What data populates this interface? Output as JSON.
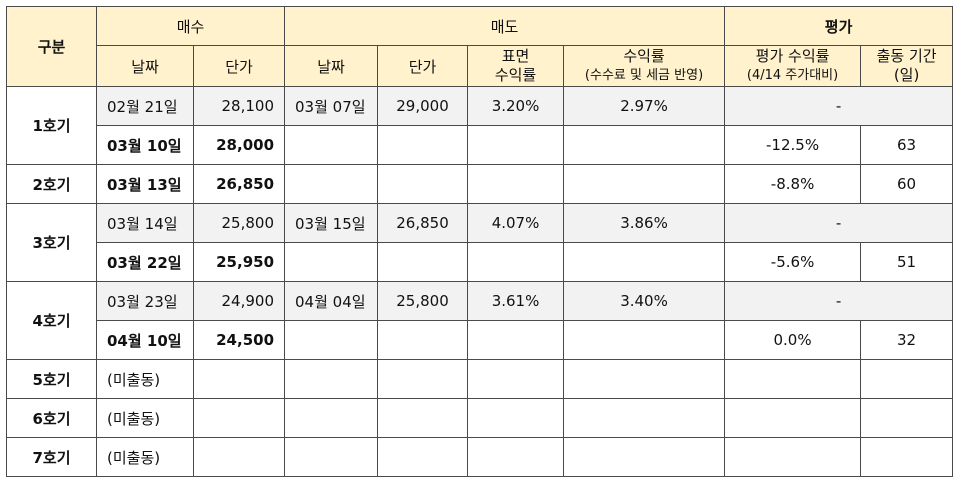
{
  "header": {
    "group": "구분",
    "buy": "매수",
    "sell": "매도",
    "eval": "평가",
    "buy_date": "날짜",
    "buy_price": "단가",
    "sell_date": "날짜",
    "sell_price": "단가",
    "surface_line1": "표면",
    "surface_line2": "수익률",
    "yield_line1": "수익률",
    "yield_line2": "(수수료 및 세금 반영)",
    "eval_yield_line1": "평가 수익률",
    "eval_yield_line2": "(4/14 주가대비)",
    "period_line1": "출동 기간",
    "period_line2": "(일)"
  },
  "rows": [
    {
      "label": "1호기",
      "r1": {
        "buy_date": "02월 21일",
        "buy_price": "28,100",
        "sell_date": "03월 07일",
        "sell_price": "29,000",
        "surface": "3.20%",
        "yield": "2.97%",
        "eval": "-"
      },
      "r2": {
        "buy_date": "03월 10일",
        "buy_price": "28,000",
        "eval_yield": "-12.5%",
        "period": "63"
      }
    },
    {
      "label": "2호기",
      "r1": {
        "buy_date": "03월 13일",
        "buy_price": "26,850",
        "eval_yield": "-8.8%",
        "period": "60"
      }
    },
    {
      "label": "3호기",
      "r1": {
        "buy_date": "03월 14일",
        "buy_price": "25,800",
        "sell_date": "03월 15일",
        "sell_price": "26,850",
        "surface": "4.07%",
        "yield": "3.86%",
        "eval": "-"
      },
      "r2": {
        "buy_date": "03월 22일",
        "buy_price": "25,950",
        "eval_yield": "-5.6%",
        "period": "51"
      }
    },
    {
      "label": "4호기",
      "r1": {
        "buy_date": "03월 23일",
        "buy_price": "24,900",
        "sell_date": "04월 04일",
        "sell_price": "25,800",
        "surface": "3.61%",
        "yield": "3.40%",
        "eval": "-"
      },
      "r2": {
        "buy_date": "04월 10일",
        "buy_price": "24,500",
        "eval_yield": "0.0%",
        "period": "32"
      }
    },
    {
      "label": "5호기",
      "note": "(미출동)"
    },
    {
      "label": "6호기",
      "note": "(미출동)"
    },
    {
      "label": "7호기",
      "note": "(미출동)"
    }
  ]
}
